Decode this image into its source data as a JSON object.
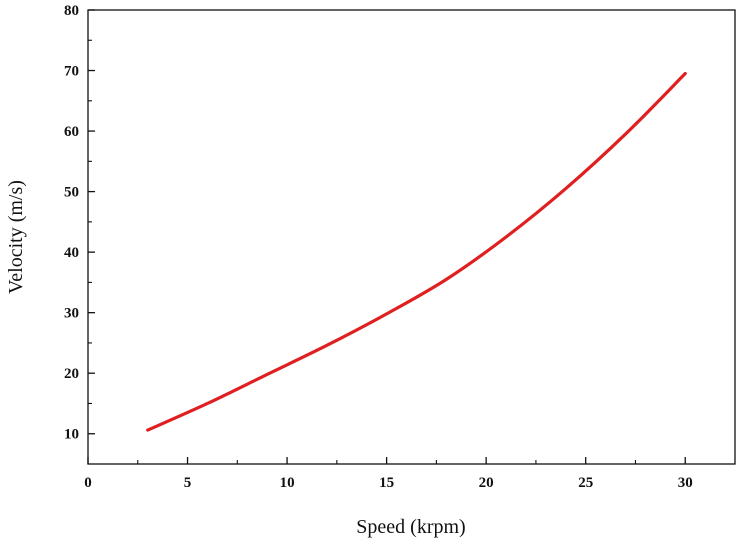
{
  "chart_data": {
    "type": "line",
    "title": "",
    "xlabel": "Speed (krpm)",
    "ylabel": "Velocity (m/s)",
    "xlim": [
      0,
      32.5
    ],
    "ylim": [
      5,
      80
    ],
    "xticks": [
      0,
      5,
      10,
      15,
      20,
      25,
      30
    ],
    "yticks": [
      10,
      20,
      30,
      40,
      50,
      60,
      70,
      80
    ],
    "grid": false,
    "series": [
      {
        "name": "Velocity",
        "color": "#e02020",
        "x": [
          3,
          6,
          9,
          12,
          15,
          18,
          21,
          24,
          27,
          30
        ],
        "y": [
          10.6,
          15.0,
          19.8,
          24.6,
          29.8,
          35.5,
          42.5,
          50.5,
          59.5,
          69.5
        ]
      }
    ]
  }
}
